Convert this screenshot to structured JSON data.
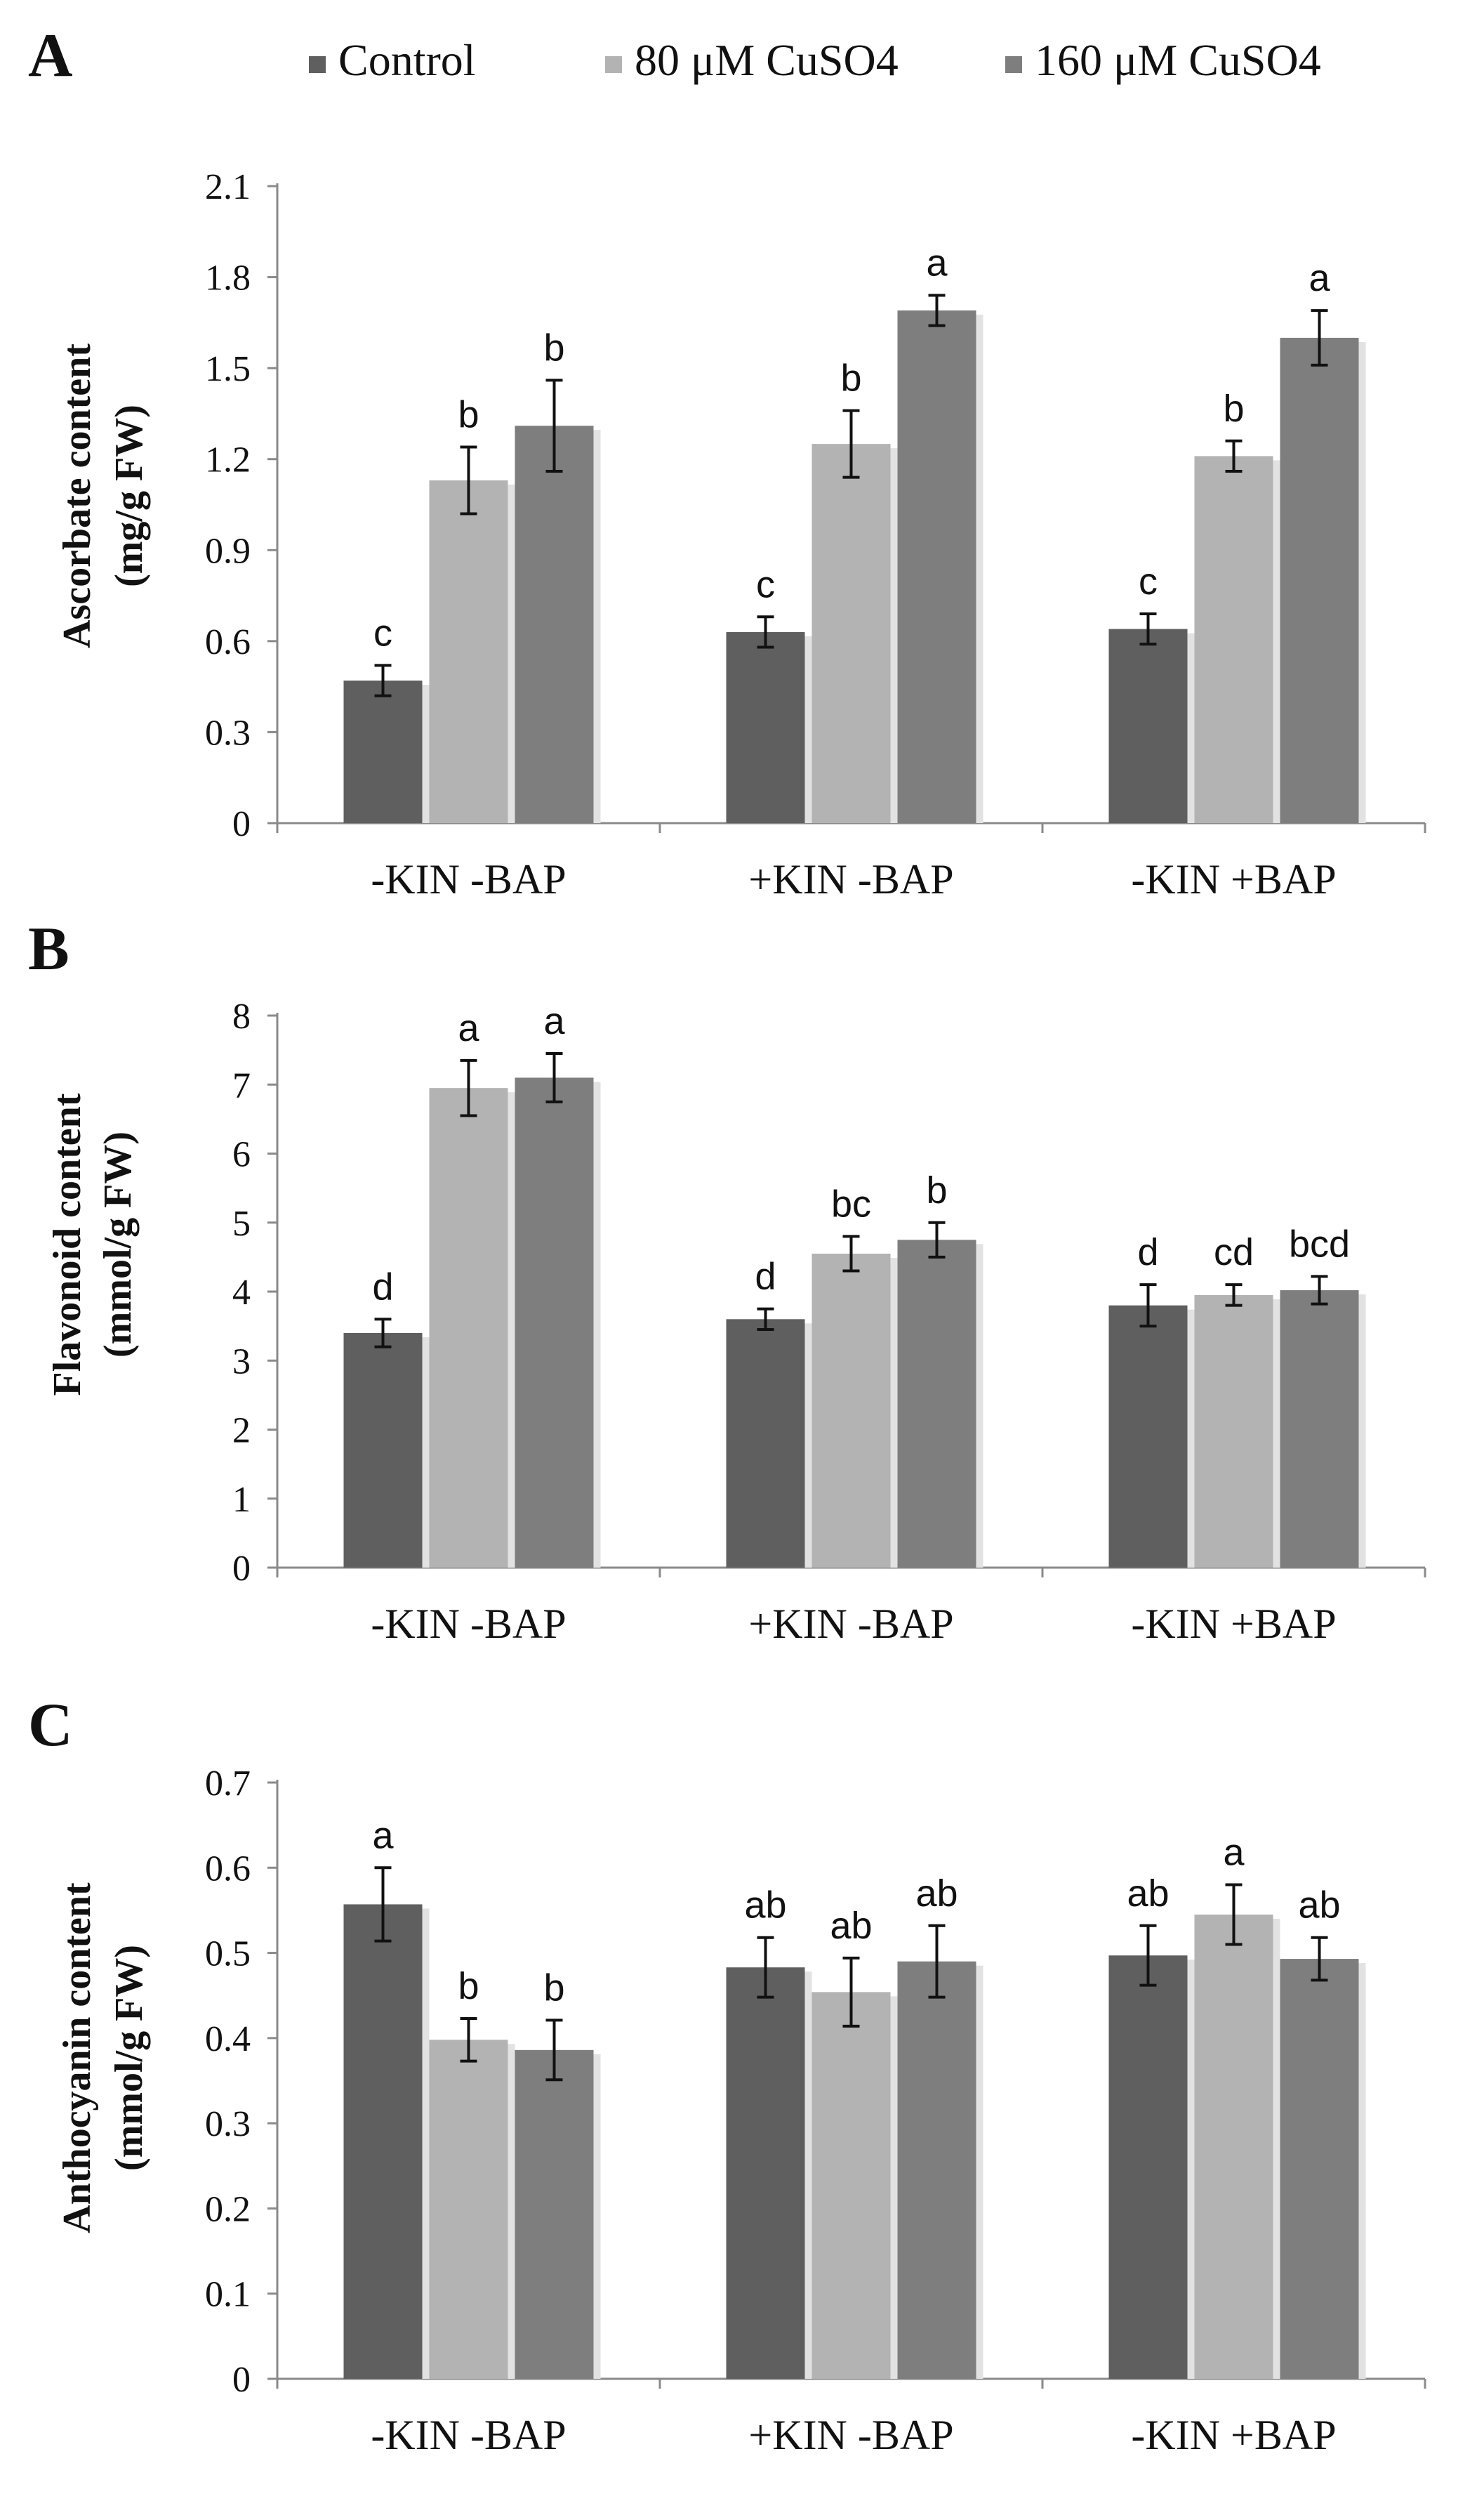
{
  "legend": {
    "items": [
      {
        "label": "Control",
        "color": "#5f5f5f"
      },
      {
        "label": "80 μM CuSO4",
        "color": "#b3b3b3"
      },
      {
        "label": "160 μM CuSO4",
        "color": "#7e7e7e"
      }
    ]
  },
  "chart_data": [
    {
      "panel": "A",
      "type": "bar",
      "ylabel_line1": "Ascorbate content",
      "ylabel_line2": "(mg/g FW)",
      "categories": [
        "-KIN -BAP",
        "+KIN -BAP",
        "-KIN +BAP"
      ],
      "ylim": [
        0,
        2.1
      ],
      "yticks": [
        "0",
        "0.3",
        "0.6",
        "0.9",
        "1.2",
        "1.5",
        "1.8",
        "2.1"
      ],
      "series": [
        {
          "name": "Control",
          "values": [
            0.47,
            0.63,
            0.64
          ],
          "errors": [
            0.05,
            0.05,
            0.05
          ],
          "letters": [
            "c",
            "c",
            "c"
          ]
        },
        {
          "name": "80 μM CuSO4",
          "values": [
            1.13,
            1.25,
            1.21
          ],
          "errors": [
            0.11,
            0.11,
            0.05
          ],
          "letters": [
            "b",
            "b",
            "b"
          ]
        },
        {
          "name": "160 μM CuSO4",
          "values": [
            1.31,
            1.69,
            1.6
          ],
          "errors": [
            0.15,
            0.05,
            0.09
          ],
          "letters": [
            "b",
            "a",
            "a"
          ]
        }
      ]
    },
    {
      "panel": "B",
      "type": "bar",
      "ylabel_line1": "Flavonoid content",
      "ylabel_line2": "(mmol/g FW)",
      "categories": [
        "-KIN -BAP",
        "+KIN -BAP",
        "-KIN +BAP"
      ],
      "ylim": [
        0,
        8
      ],
      "yticks": [
        "0",
        "1",
        "2",
        "3",
        "4",
        "5",
        "6",
        "7",
        "8"
      ],
      "series": [
        {
          "name": "Control",
          "values": [
            3.4,
            3.6,
            3.8
          ],
          "errors": [
            0.2,
            0.15,
            0.3
          ],
          "letters": [
            "d",
            "d",
            "d"
          ]
        },
        {
          "name": "80 μM CuSO4",
          "values": [
            6.95,
            4.55,
            3.95
          ],
          "errors": [
            0.4,
            0.25,
            0.15
          ],
          "letters": [
            "a",
            "bc",
            "cd"
          ]
        },
        {
          "name": "160 μM CuSO4",
          "values": [
            7.1,
            4.75,
            4.02
          ],
          "errors": [
            0.35,
            0.25,
            0.2
          ],
          "letters": [
            "a",
            "b",
            "bcd"
          ]
        }
      ]
    },
    {
      "panel": "C",
      "type": "bar",
      "ylabel_line1": "Anthocyanin content",
      "ylabel_line2": "(mmol/g FW)",
      "categories": [
        "-KIN -BAP",
        "+KIN -BAP",
        "-KIN +BAP"
      ],
      "ylim": [
        0,
        0.7
      ],
      "yticks": [
        "0",
        "0.1",
        "0.2",
        "0.3",
        "0.4",
        "0.5",
        "0.6",
        "0.7"
      ],
      "series": [
        {
          "name": "Control",
          "values": [
            0.557,
            0.483,
            0.497
          ],
          "errors": [
            0.043,
            0.035,
            0.035
          ],
          "letters": [
            "a",
            "ab",
            "ab"
          ]
        },
        {
          "name": "80 μM CuSO4",
          "values": [
            0.398,
            0.454,
            0.545
          ],
          "errors": [
            0.025,
            0.04,
            0.035
          ],
          "letters": [
            "b",
            "ab",
            "a"
          ]
        },
        {
          "name": "160 μM CuSO4",
          "values": [
            0.386,
            0.49,
            0.493
          ],
          "errors": [
            0.035,
            0.042,
            0.025
          ],
          "letters": [
            "b",
            "ab",
            "ab"
          ]
        }
      ]
    }
  ]
}
